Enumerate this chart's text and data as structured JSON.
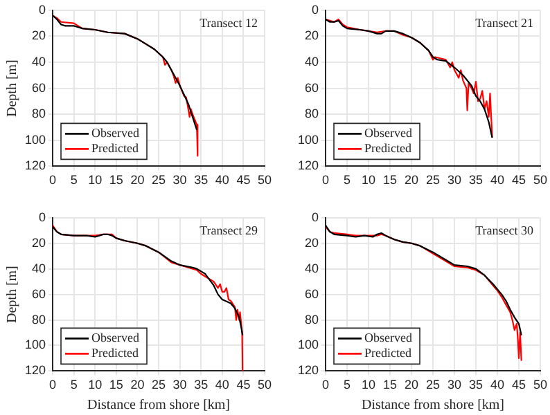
{
  "chart_data": [
    {
      "type": "line",
      "annotations": [
        "Transect 12"
      ],
      "ylabel": "Depth [m]",
      "xlim": [
        0,
        50
      ],
      "xticks": [
        0,
        5,
        10,
        15,
        20,
        25,
        30,
        35,
        40,
        45,
        50
      ],
      "ylim": [
        120,
        0
      ],
      "yticks": [
        0,
        20,
        40,
        60,
        80,
        100,
        120
      ],
      "grid": true,
      "legend": "bottom left",
      "series": [
        {
          "name": "Observed",
          "color": "#000000",
          "x": [
            0,
            1,
            2,
            3,
            5,
            6,
            7,
            10,
            13,
            17,
            20,
            22,
            24,
            26,
            27,
            28,
            29,
            30,
            31,
            32,
            33,
            34
          ],
          "values": [
            4,
            7,
            11,
            12,
            12,
            13,
            14,
            15,
            17,
            18,
            22,
            26,
            30,
            36,
            40,
            46,
            52,
            58,
            65,
            72,
            82,
            92
          ]
        },
        {
          "name": "Predicted",
          "color": "#ff0000",
          "x": [
            0,
            1,
            2,
            5,
            6,
            7,
            10,
            13,
            17,
            20,
            22,
            24,
            26,
            26.5,
            27,
            28,
            28.5,
            29,
            29.5,
            30,
            31,
            31.5,
            32,
            32.3,
            32.6,
            33,
            33.5,
            34,
            34.2
          ],
          "values": [
            4,
            6,
            9,
            10,
            12,
            14,
            15,
            17,
            18,
            22,
            26,
            30,
            36,
            42,
            40,
            46,
            50,
            56,
            52,
            58,
            66,
            67,
            76,
            82,
            76,
            80,
            84,
            88,
            112
          ]
        }
      ]
    },
    {
      "type": "line",
      "annotations": [
        "Transect 21"
      ],
      "xlim": [
        0,
        50
      ],
      "xticks": [
        0,
        5,
        10,
        15,
        20,
        25,
        30,
        35,
        40,
        45,
        50
      ],
      "ylim": [
        120,
        0
      ],
      "yticks": [
        0,
        20,
        40,
        60,
        80,
        100,
        120
      ],
      "grid": true,
      "legend": "bottom left",
      "series": [
        {
          "name": "Observed",
          "color": "#000000",
          "x": [
            0,
            1,
            2,
            3,
            4,
            5,
            8,
            10,
            12,
            13,
            14,
            16,
            18,
            20,
            22,
            24,
            25,
            26,
            28,
            30,
            32,
            34,
            35,
            36,
            37,
            38,
            38.8
          ],
          "values": [
            7,
            9,
            9,
            8,
            12,
            14,
            15,
            16,
            18,
            18,
            16,
            16,
            18,
            21,
            25,
            31,
            36,
            38,
            39,
            44,
            50,
            58,
            66,
            70,
            76,
            86,
            98
          ]
        },
        {
          "name": "Predicted",
          "color": "#ff0000",
          "x": [
            0,
            1,
            2,
            3,
            4,
            5,
            8,
            10,
            12,
            14,
            16,
            18,
            20,
            22,
            24,
            25,
            25.5,
            28,
            29,
            29.5,
            30,
            31,
            31.5,
            32,
            32.8,
            33,
            33.3,
            34,
            34.5,
            35,
            35.5,
            36,
            36.5,
            37,
            37.5,
            38,
            38.3,
            38.8
          ],
          "values": [
            7,
            8,
            9,
            7,
            11,
            13,
            15,
            16,
            17,
            16,
            16,
            19,
            21,
            25,
            31,
            38,
            36,
            38,
            44,
            40,
            46,
            52,
            46,
            54,
            60,
            77,
            56,
            60,
            64,
            55,
            70,
            68,
            62,
            76,
            70,
            82,
            64,
            98
          ]
        }
      ]
    },
    {
      "type": "line",
      "annotations": [
        "Transect 29"
      ],
      "xlabel": "Distance from shore [km]",
      "ylabel": "Depth [m]",
      "xlim": [
        0,
        50
      ],
      "xticks": [
        0,
        5,
        10,
        15,
        20,
        25,
        30,
        35,
        40,
        45,
        50
      ],
      "ylim": [
        120,
        0
      ],
      "yticks": [
        0,
        20,
        40,
        60,
        80,
        100,
        120
      ],
      "grid": true,
      "legend": "bottom left",
      "series": [
        {
          "name": "Observed",
          "color": "#000000",
          "x": [
            0,
            1,
            2,
            5,
            8,
            10,
            11,
            12,
            13,
            14,
            15,
            17,
            20,
            22,
            25,
            28,
            30,
            33,
            34,
            36,
            38,
            39,
            40,
            42,
            43,
            44,
            44.5,
            44.8
          ],
          "values": [
            7,
            11,
            13,
            14,
            14,
            15,
            14,
            13,
            13,
            14,
            16,
            18,
            20,
            22,
            27,
            34,
            37,
            39,
            40,
            44,
            53,
            60,
            64,
            67,
            71,
            78,
            86,
            92
          ]
        },
        {
          "name": "Predicted",
          "color": "#ff0000",
          "x": [
            0,
            1,
            2,
            5,
            8,
            10,
            12,
            14,
            15,
            17,
            20,
            22,
            25,
            28,
            30,
            32,
            34,
            35,
            36,
            38,
            39,
            39.5,
            40,
            40.5,
            41,
            41.5,
            42,
            43,
            43.3,
            43.6,
            44,
            44.2,
            44.7,
            44.8
          ],
          "values": [
            6,
            11,
            13,
            14,
            14,
            14,
            13,
            13,
            16,
            18,
            20,
            22,
            27,
            35,
            37,
            39,
            41,
            44,
            46,
            50,
            55,
            52,
            58,
            58,
            55,
            64,
            65,
            70,
            80,
            72,
            80,
            74,
            90,
            120
          ]
        }
      ]
    },
    {
      "type": "line",
      "annotations": [
        "Transect 30"
      ],
      "xlabel": "Distance from shore [km]",
      "xlim": [
        0,
        50
      ],
      "xticks": [
        0,
        5,
        10,
        15,
        20,
        25,
        30,
        35,
        40,
        45,
        50
      ],
      "ylim": [
        120,
        0
      ],
      "yticks": [
        0,
        20,
        40,
        60,
        80,
        100,
        120
      ],
      "grid": true,
      "legend": "bottom left",
      "series": [
        {
          "name": "Observed",
          "color": "#000000",
          "x": [
            0,
            1,
            2,
            5,
            7,
            9,
            11,
            12,
            13,
            14,
            16,
            18,
            20,
            22,
            25,
            28,
            30,
            33,
            35,
            37,
            39,
            41,
            42,
            43,
            44,
            45,
            45.6
          ],
          "values": [
            6,
            11,
            13,
            14,
            15,
            14,
            15,
            13,
            12,
            14,
            17,
            19,
            20,
            22,
            27,
            33,
            37,
            38,
            40,
            45,
            52,
            60,
            65,
            72,
            78,
            83,
            92
          ]
        },
        {
          "name": "Predicted",
          "color": "#ff0000",
          "x": [
            0,
            1,
            2,
            5,
            7,
            9,
            11,
            12,
            13,
            14,
            16,
            18,
            20,
            22,
            25,
            28,
            30,
            33,
            35,
            37,
            39,
            40,
            41,
            42,
            43,
            43.5,
            44,
            44.5,
            44.8,
            45,
            45.3,
            45.6
          ],
          "values": [
            7,
            11,
            12,
            13,
            14,
            14,
            14,
            14,
            13,
            14,
            17,
            19,
            20,
            22,
            28,
            34,
            38,
            39,
            41,
            45,
            53,
            57,
            62,
            68,
            74,
            80,
            88,
            83,
            96,
            110,
            90,
            112
          ]
        }
      ]
    }
  ]
}
